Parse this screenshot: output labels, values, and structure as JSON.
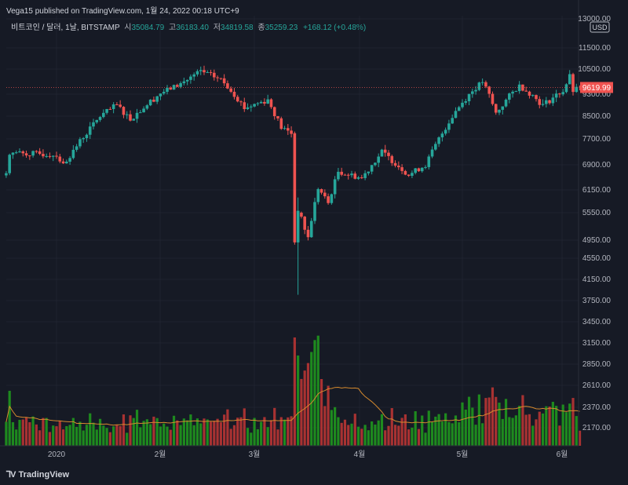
{
  "header": {
    "publisher_line": "Vega15 published on TradingView.com, 1월 24, 2022 00:18 UTC+9"
  },
  "legend": {
    "symbol": "비트코인 / 달러, 1날, BITSTAMP",
    "open_label": "시",
    "open_value": "35084.79",
    "high_label": "고",
    "high_value": "36183.40",
    "low_label": "저",
    "low_value": "34819.58",
    "close_label": "종",
    "close_value": "35259.23",
    "change": "+168.12 (+0.48%)"
  },
  "footer": {
    "brand": "TradingView"
  },
  "colors": {
    "up": "#26a69a",
    "down": "#ef5350",
    "up_vol": "#1e8a1e",
    "down_vol": "#a83232",
    "ma": "#d68a2e",
    "background": "#161a25"
  },
  "chart_data": {
    "type": "candlestick",
    "currency_label": "USD",
    "last_price": "9619.99",
    "price_ticks": [
      "13000.00",
      "11500.00",
      "10500.00",
      "9300.00",
      "8500.00",
      "7700.00",
      "6900.00",
      "6150.00",
      "5550.00",
      "4950.00",
      "4550.00",
      "4150.00",
      "3750.00",
      "3450.00",
      "3150.00",
      "2850.00",
      "2610.00",
      "2370.00",
      "2170.00"
    ],
    "x_ticks": [
      "2020",
      "2월",
      "3월",
      "4월",
      "5월",
      "6월"
    ],
    "ylim": [
      2000,
      13000
    ],
    "grid": true,
    "anchors": [
      {
        "date": "2019-12-17",
        "price": 6650
      },
      {
        "date": "2019-12-18",
        "price": 7280
      },
      {
        "date": "2020-01-01",
        "price": 7200
      },
      {
        "date": "2020-01-03",
        "price": 6900
      },
      {
        "date": "2020-01-14",
        "price": 8500
      },
      {
        "date": "2020-01-19",
        "price": 8900
      },
      {
        "date": "2020-01-23",
        "price": 8400
      },
      {
        "date": "2020-02-01",
        "price": 9350
      },
      {
        "date": "2020-02-07",
        "price": 9800
      },
      {
        "date": "2020-02-13",
        "price": 10400
      },
      {
        "date": "2020-02-19",
        "price": 10000
      },
      {
        "date": "2020-02-26",
        "price": 8800
      },
      {
        "date": "2020-03-04",
        "price": 9100
      },
      {
        "date": "2020-03-08",
        "price": 8100
      },
      {
        "date": "2020-03-11",
        "price": 7900
      },
      {
        "date": "2020-03-12",
        "price": 4900
      },
      {
        "date": "2020-03-13",
        "price": 5600
      },
      {
        "date": "2020-03-16",
        "price": 5000
      },
      {
        "date": "2020-03-19",
        "price": 6200
      },
      {
        "date": "2020-03-22",
        "price": 5800
      },
      {
        "date": "2020-03-25",
        "price": 6700
      },
      {
        "date": "2020-04-01",
        "price": 6500
      },
      {
        "date": "2020-04-07",
        "price": 7300
      },
      {
        "date": "2020-04-15",
        "price": 6600
      },
      {
        "date": "2020-04-20",
        "price": 6900
      },
      {
        "date": "2020-04-29",
        "price": 8700
      },
      {
        "date": "2020-05-07",
        "price": 9900
      },
      {
        "date": "2020-05-11",
        "price": 8600
      },
      {
        "date": "2020-05-18",
        "price": 9700
      },
      {
        "date": "2020-05-25",
        "price": 8900
      },
      {
        "date": "2020-05-31",
        "price": 9450
      },
      {
        "date": "2020-06-02",
        "price": 10150
      },
      {
        "date": "2020-06-03",
        "price": 9450
      },
      {
        "date": "2020-06-05",
        "price": 9619.99
      }
    ]
  }
}
